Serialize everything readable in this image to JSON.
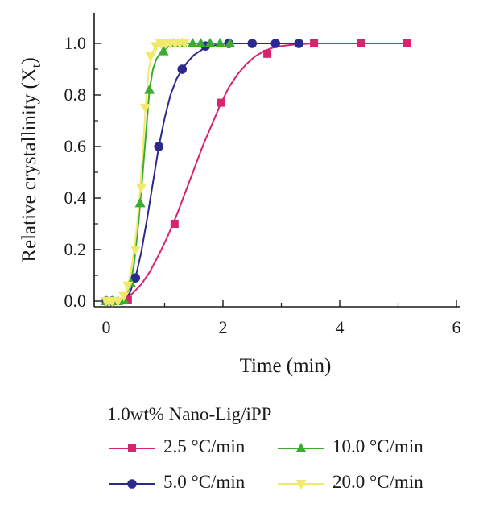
{
  "chart_data": {
    "type": "line",
    "xlabel": "Time (min)",
    "ylabel": "Relative crystallinity (X",
    "ylabel_sub": "t",
    "ylabel_close": ")",
    "xlim": [
      -0.1,
      6
    ],
    "ylim": [
      -0.02,
      1.07
    ],
    "xticks": [
      0,
      2,
      4,
      6
    ],
    "xtick_labels": [
      "0",
      "2",
      "4",
      "6"
    ],
    "yticks": [
      0,
      0.2,
      0.4,
      0.6,
      0.8,
      1.0
    ],
    "ytick_labels": [
      "0.0",
      "0.2",
      "0.4",
      "0.6",
      "0.8",
      "1.0"
    ],
    "grid": false,
    "legend_title": "1.0wt% Nano-Lig/iPP",
    "legend_position": "bottom",
    "series": [
      {
        "name": "2.5 °C/min",
        "color": "#d6246e",
        "marker": "square",
        "x": [
          0.0,
          0.37,
          1.17,
          1.96,
          2.76,
          3.56,
          4.36,
          5.15
        ],
        "y": [
          0.0,
          0.005,
          0.3,
          0.77,
          0.96,
          1.0,
          1.0,
          1.0
        ],
        "curve_x": [
          0.15,
          0.3,
          0.45,
          0.6,
          0.75,
          0.9,
          1.05,
          1.2,
          1.35,
          1.5,
          1.65,
          1.8,
          1.95,
          2.1,
          2.25,
          2.4,
          2.55,
          2.7,
          2.85,
          3.0,
          3.2,
          3.4,
          3.6,
          4.0,
          4.5,
          5.15
        ],
        "curve_y": [
          0.0,
          0.006,
          0.03,
          0.065,
          0.115,
          0.18,
          0.25,
          0.33,
          0.42,
          0.51,
          0.6,
          0.68,
          0.76,
          0.83,
          0.88,
          0.92,
          0.95,
          0.97,
          0.983,
          0.99,
          0.995,
          0.998,
          1.0,
          1.0,
          1.0,
          1.0
        ]
      },
      {
        "name": "5.0 °C/min",
        "color": "#2b2a8c",
        "marker": "circle",
        "x": [
          0.0,
          0.1,
          0.5,
          0.9,
          1.3,
          1.7,
          2.1,
          2.5,
          2.9,
          3.3
        ],
        "y": [
          0.0,
          0.0,
          0.09,
          0.6,
          0.9,
          0.99,
          1.0,
          1.0,
          1.0,
          1.0
        ],
        "curve_x": [
          0.3,
          0.4,
          0.5,
          0.6,
          0.7,
          0.8,
          0.9,
          1.0,
          1.1,
          1.2,
          1.3,
          1.4,
          1.5,
          1.6,
          1.7,
          1.8,
          1.9,
          2.0,
          2.2,
          2.5,
          3.3
        ],
        "curve_y": [
          0.0,
          0.03,
          0.09,
          0.19,
          0.32,
          0.46,
          0.6,
          0.71,
          0.8,
          0.86,
          0.9,
          0.93,
          0.955,
          0.97,
          0.985,
          0.99,
          0.995,
          1.0,
          1.0,
          1.0,
          1.0
        ]
      },
      {
        "name": "10.0 °C/min",
        "color": "#3cab32",
        "marker": "triangle-up",
        "x": [
          0.0,
          0.1,
          0.2,
          0.3,
          0.42,
          0.58,
          0.74,
          0.98,
          1.15,
          1.3,
          1.48,
          1.62,
          1.78,
          1.95,
          2.12
        ],
        "y": [
          0.0,
          0.0,
          0.0,
          0.005,
          0.07,
          0.38,
          0.82,
          0.97,
          1.0,
          1.0,
          1.0,
          1.0,
          1.0,
          1.0,
          1.0
        ],
        "curve_x": [
          0.28,
          0.35,
          0.42,
          0.48,
          0.55,
          0.62,
          0.68,
          0.74,
          0.8,
          0.86,
          0.92,
          0.98,
          1.05,
          1.15,
          1.3,
          2.12
        ],
        "curve_y": [
          0.0,
          0.02,
          0.07,
          0.15,
          0.3,
          0.48,
          0.65,
          0.82,
          0.9,
          0.94,
          0.96,
          0.97,
          0.985,
          1.0,
          1.0,
          1.0
        ]
      },
      {
        "name": "20.0 °C/min",
        "color": "#f1e96a",
        "marker": "triangle-down",
        "x": [
          0.0,
          0.05,
          0.1,
          0.2,
          0.3,
          0.37,
          0.5,
          0.6,
          0.67,
          0.76,
          0.85,
          0.93,
          1.02,
          1.1,
          1.18,
          1.26,
          1.34
        ],
        "y": [
          0.0,
          0.0,
          0.0,
          0.0,
          0.02,
          0.06,
          0.2,
          0.44,
          0.75,
          0.95,
          0.99,
          1.0,
          1.0,
          1.0,
          1.0,
          1.0,
          1.0
        ],
        "curve_x": [
          0.28,
          0.33,
          0.38,
          0.43,
          0.48,
          0.53,
          0.58,
          0.63,
          0.68,
          0.73,
          0.78,
          0.85,
          0.93,
          1.0,
          1.34
        ],
        "curve_y": [
          0.0,
          0.03,
          0.07,
          0.13,
          0.2,
          0.3,
          0.43,
          0.6,
          0.77,
          0.9,
          0.96,
          0.99,
          1.0,
          1.0,
          1.0
        ]
      }
    ]
  }
}
